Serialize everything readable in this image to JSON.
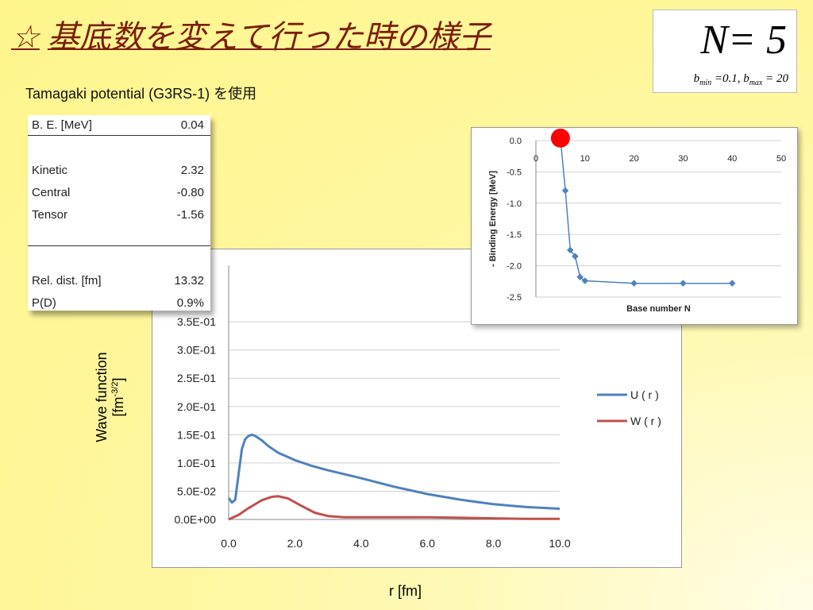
{
  "slide": {
    "title_star": "☆",
    "title": "基底数を変えて行った時の様子",
    "subtitle": "Tamagaki potential (G3RS-1) を使用",
    "n_label": "N= 5",
    "b_min_label": "b",
    "b_min_sub": "min",
    "b_min_value": " =0.1, ",
    "b_max_label": "b",
    "b_max_sub": "max",
    "b_max_value": " = 20"
  },
  "table": {
    "rows": [
      {
        "label": "B. E. [MeV]",
        "value": "0.04"
      },
      {
        "label": "Kinetic",
        "value": "2.32"
      },
      {
        "label": "Central",
        "value": "-0.80"
      },
      {
        "label": "Tensor",
        "value": "-1.56"
      },
      {
        "label": "Rel. dist. [fm]",
        "value": "13.32"
      },
      {
        "label": "P(D)",
        "value": "0.9%"
      }
    ]
  },
  "wave_axis": {
    "ylabel_line1": "Wave function",
    "ylabel_line2": "[fm",
    "ylabel_sup": "-3/2",
    "ylabel_end": "]",
    "xlabel": "r [fm]"
  },
  "chart_data": [
    {
      "type": "line",
      "xlim": [
        0,
        10
      ],
      "ylim": [
        0,
        0.45
      ],
      "xticks": [
        "0.0",
        "2.0",
        "4.0",
        "6.0",
        "8.0",
        "10.0"
      ],
      "yticks": [
        "0.0E+00",
        "5.0E-02",
        "1.0E-01",
        "1.5E-01",
        "2.0E-01",
        "2.5E-01",
        "3.0E-01",
        "3.5E-01"
      ],
      "legend_position": "right",
      "series": [
        {
          "name": "U ( r )",
          "color": "#4f81bd",
          "x": [
            0,
            0.1,
            0.2,
            0.3,
            0.4,
            0.5,
            0.6,
            0.7,
            0.8,
            1.0,
            1.2,
            1.5,
            2.0,
            2.5,
            3.0,
            4.0,
            5.0,
            6.0,
            7.0,
            8.0,
            9.0,
            10.0
          ],
          "y": [
            0.038,
            0.03,
            0.035,
            0.08,
            0.125,
            0.142,
            0.148,
            0.15,
            0.148,
            0.14,
            0.13,
            0.118,
            0.105,
            0.095,
            0.087,
            0.073,
            0.058,
            0.045,
            0.035,
            0.027,
            0.022,
            0.019
          ]
        },
        {
          "name": "W ( r )",
          "color": "#c0504d",
          "x": [
            0,
            0.3,
            0.6,
            1.0,
            1.3,
            1.5,
            1.8,
            2.2,
            2.6,
            3.0,
            3.5,
            4.0,
            5.0,
            6.0,
            7.0,
            8.0,
            9.0,
            10.0
          ],
          "y": [
            0.0,
            0.008,
            0.02,
            0.034,
            0.04,
            0.041,
            0.037,
            0.024,
            0.012,
            0.006,
            0.004,
            0.004,
            0.004,
            0.004,
            0.003,
            0.002,
            0.001,
            0.001
          ]
        }
      ]
    },
    {
      "type": "line",
      "xlim": [
        0,
        50
      ],
      "ylim": [
        -2.5,
        0.0
      ],
      "xticks": [
        "0",
        "10",
        "20",
        "30",
        "40",
        "50"
      ],
      "yticks": [
        "0.0",
        "-0.5",
        "-1.0",
        "-1.5",
        "-2.0",
        "-2.5"
      ],
      "xlabel": "Base number N",
      "ylabel": "- Binding Energy [MeV]",
      "series": [
        {
          "color": "#4f81bd",
          "x": [
            5,
            6,
            7,
            8,
            9,
            10,
            20,
            30,
            40
          ],
          "y": [
            0.04,
            -0.8,
            -1.75,
            -1.85,
            -2.18,
            -2.24,
            -2.28,
            -2.28,
            -2.28
          ]
        }
      ],
      "highlight": {
        "x": 5,
        "y": 0.04,
        "color": "#ff0000"
      }
    }
  ]
}
